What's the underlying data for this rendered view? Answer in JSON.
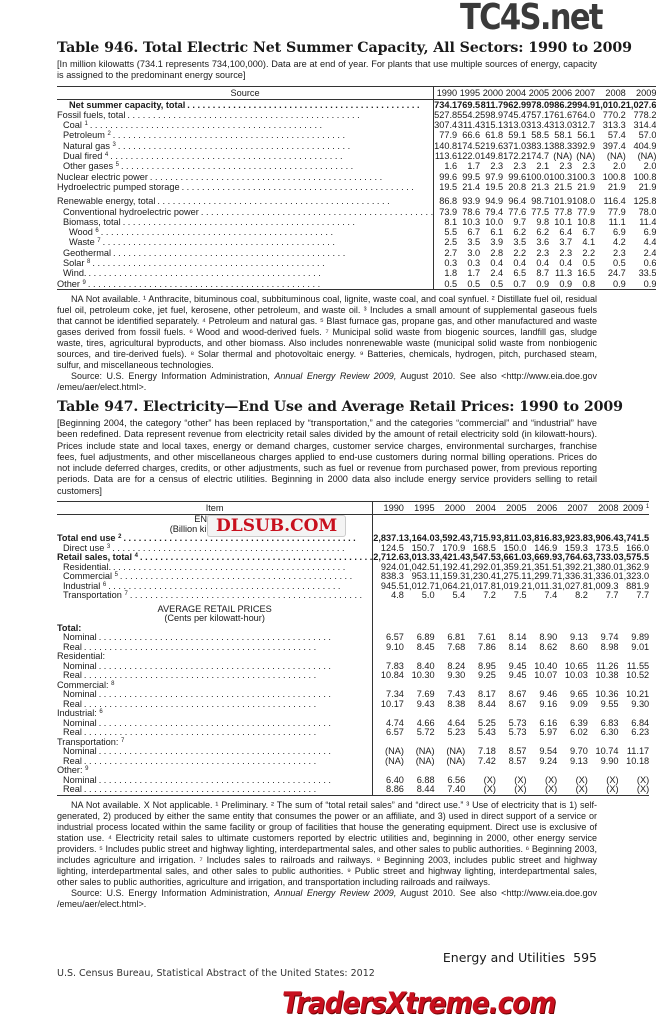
{
  "watermarks": {
    "top": "TC4S.net",
    "middle": "DLSUB.COM",
    "bottom": "TradersXtreme.com"
  },
  "colors": {
    "watermark_red": "#c8101e",
    "watermark_gray": "#3a3a3a"
  },
  "t946": {
    "title": "Table 946. Total Electric Net Summer Capacity, All Sectors: 1990 to 2009",
    "intro": "[In million kilowatts (734.1 represents 734,100,000). Data are at end of year. For plants that use multiple sources of energy, capacity is assigned to the predominant energy source]",
    "headers": [
      "Source",
      "1990",
      "1995",
      "2000",
      "2004",
      "2005",
      "2006",
      "2007",
      "2008",
      "2009"
    ],
    "rows": [
      {
        "label": "Net summer capacity, total",
        "sup": "",
        "indent": 2,
        "bold": true,
        "values": [
          "734.1",
          "769.5",
          "811.7",
          "962.9",
          "978.0",
          "986.2",
          "994.9",
          "1,010.2",
          "1,027.6"
        ]
      },
      {
        "label": "Fossil fuels, total",
        "sup": "",
        "indent": 0,
        "values": [
          "527.8",
          "554.2",
          "598.9",
          "745.4",
          "757.1",
          "761.6",
          "764.0",
          "770.2",
          "778.2"
        ]
      },
      {
        "label": "Coal",
        "sup": "1",
        "indent": 1,
        "values": [
          "307.4",
          "311.4",
          "315.1",
          "313.0",
          "313.4",
          "313.0",
          "312.7",
          "313.3",
          "314.4"
        ]
      },
      {
        "label": "Petroleum",
        "sup": "2",
        "indent": 1,
        "values": [
          "77.9",
          "66.6",
          "61.8",
          "59.1",
          "58.5",
          "58.1",
          "56.1",
          "57.4",
          "57.0"
        ]
      },
      {
        "label": "Natural gas",
        "sup": "3",
        "indent": 1,
        "values": [
          "140.8",
          "174.5",
          "219.6",
          "371.0",
          "383.1",
          "388.3",
          "392.9",
          "397.4",
          "404.9"
        ]
      },
      {
        "label": "Dual fired",
        "sup": "4",
        "indent": 1,
        "values": [
          "113.6",
          "122.0",
          "149.8",
          "172.2",
          "174.7",
          "(NA)",
          "(NA)",
          "(NA)",
          "(NA)"
        ]
      },
      {
        "label": "Other gases",
        "sup": "5",
        "indent": 1,
        "values": [
          "1.6",
          "1.7",
          "2.3",
          "2.3",
          "2.1",
          "2.3",
          "2.3",
          "2.0",
          "2.0"
        ]
      },
      {
        "label": "Nuclear electric power",
        "sup": "",
        "indent": 0,
        "values": [
          "99.6",
          "99.5",
          "97.9",
          "99.6",
          "100.0",
          "100.3",
          "100.3",
          "100.8",
          "100.8"
        ]
      },
      {
        "label": "Hydroelectric pumped storage",
        "sup": "",
        "indent": 0,
        "values": [
          "19.5",
          "21.4",
          "19.5",
          "20.8",
          "21.3",
          "21.5",
          "21.9",
          "21.9",
          "21.9"
        ]
      },
      {
        "label": "Renewable energy, total",
        "sup": "",
        "indent": 0,
        "gap": true,
        "values": [
          "86.8",
          "93.9",
          "94.9",
          "96.4",
          "98.7",
          "101.9",
          "108.0",
          "116.4",
          "125.8"
        ]
      },
      {
        "label": "Conventional hydroelectric power",
        "sup": "",
        "indent": 1,
        "values": [
          "73.9",
          "78.6",
          "79.4",
          "77.6",
          "77.5",
          "77.8",
          "77.9",
          "77.9",
          "78.0"
        ]
      },
      {
        "label": "Biomass, total",
        "sup": "",
        "indent": 1,
        "values": [
          "8.1",
          "10.3",
          "10.0",
          "9.7",
          "9.8",
          "10.1",
          "10.8",
          "11.1",
          "11.4"
        ]
      },
      {
        "label": "Wood",
        "sup": "6",
        "indent": 2,
        "values": [
          "5.5",
          "6.7",
          "6.1",
          "6.2",
          "6.2",
          "6.4",
          "6.7",
          "6.9",
          "6.9"
        ]
      },
      {
        "label": "Waste",
        "sup": "7",
        "indent": 2,
        "values": [
          "2.5",
          "3.5",
          "3.9",
          "3.5",
          "3.6",
          "3.7",
          "4.1",
          "4.2",
          "4.4"
        ]
      },
      {
        "label": "Geothermal",
        "sup": "",
        "indent": 1,
        "values": [
          "2.7",
          "3.0",
          "2.8",
          "2.2",
          "2.3",
          "2.3",
          "2.2",
          "2.3",
          "2.4"
        ]
      },
      {
        "label": "Solar",
        "sup": "8",
        "indent": 1,
        "values": [
          "0.3",
          "0.3",
          "0.4",
          "0.4",
          "0.4",
          "0.4",
          "0.5",
          "0.5",
          "0.6"
        ]
      },
      {
        "label": "Wind.",
        "sup": "",
        "indent": 1,
        "values": [
          "1.8",
          "1.7",
          "2.4",
          "6.5",
          "8.7",
          "11.3",
          "16.5",
          "24.7",
          "33.5"
        ]
      },
      {
        "label": "Other",
        "sup": "9",
        "indent": 0,
        "values": [
          "0.5",
          "0.5",
          "0.5",
          "0.7",
          "0.9",
          "0.9",
          "0.8",
          "0.9",
          "0.9"
        ]
      }
    ],
    "notes": "NA Not available. ¹ Anthracite, bituminous coal, subbituminous coal, lignite, waste coal, and coal synfuel. ² Distillate fuel oil, residual fuel oil, petroleum coke, jet fuel, kerosene, other petroleum, and waste oil. ³ Includes a small amount of supplemental gaseous fuels that cannot be identified separately. ⁴ Petroleum and natural gas. ⁵ Blast furnace gas, propane gas, and other manufactured and waste gases derived from fossil fuels. ⁶ Wood and wood-derived fuels. ⁷ Municipal solid waste from biogenic sources, landfill gas, sludge waste, tires, agricultural byproducts, and other biomass. Also includes nonrenewable waste (municipal solid waste from nonbiogenic sources, and tire-derived fuels). ⁸ Solar thermal and photovoltaic energy. ⁹ Batteries, chemicals, hydrogen, pitch, purchased steam, sulfur, and miscellaneous technologies.",
    "source_pre": "Source: U.S. Energy Information Administration, ",
    "source_italic": "Annual Energy Review 2009,",
    "source_post": " August 2010. See also <http://www.eia.doe.gov /emeu/aer/elect.html>."
  },
  "t947": {
    "title": "Table 947. Electricity—End Use and Average Retail Prices: 1990 to 2009",
    "intro": "[Beginning 2004, the category “other” has been replaced by “transportation,” and the categories “commercial” and “industrial” have been redefined. Data represent revenue from electricity retail sales divided by the amount of retail electricity sold (in kilowatt-hours). Prices include state and local taxes, energy or demand charges, customer service charges, environmental surcharges, franchise fees, fuel adjustments, and other miscellaneous charges applied to end-use customers during normal billing operations. Prices do not include deferred charges, credits, or other adjustments, such as fuel or revenue from purchased power, from previous reporting periods. Data are for a census of electric utilities. Beginning in 2000 data also include energy service providers selling to retail customers]",
    "headers": [
      "Item",
      "1990",
      "1995",
      "2000",
      "2004",
      "2005",
      "2006",
      "2007",
      "2008",
      "2009"
    ],
    "header_sup_last": "1",
    "rows": [
      {
        "label": "END USE",
        "center": true,
        "noleader": true,
        "values": []
      },
      {
        "label": "(Billion kilowatt-hours)",
        "center": true,
        "noleader": true,
        "values": []
      },
      {
        "label": "Total end use",
        "sup": "2",
        "bold": true,
        "indent": 0,
        "values": [
          "2,837.1",
          "3,164.0",
          "3,592.4",
          "3,715.9",
          "3,811.0",
          "3,816.8",
          "3,923.8",
          "3,906.4",
          "3,741.5"
        ]
      },
      {
        "label": "Direct use",
        "sup": "3",
        "indent": 1,
        "values": [
          "124.5",
          "150.7",
          "170.9",
          "168.5",
          "150.0",
          "146.9",
          "159.3",
          "173.5",
          "166.0"
        ]
      },
      {
        "label": "Retail sales, total",
        "sup": "4",
        "bold": true,
        "indent": 0,
        "values": [
          "2,712.6",
          "3,013.3",
          "3,421.4",
          "3,547.5",
          "3,661.0",
          "3,669.9",
          "3,764.6",
          "3,733.0",
          "3,575.5"
        ]
      },
      {
        "label": "Residential.",
        "indent": 1,
        "values": [
          "924.0",
          "1,042.5",
          "1,192.4",
          "1,292.0",
          "1,359.2",
          "1,351.5",
          "1,392.2",
          "1,380.0",
          "1,362.9"
        ]
      },
      {
        "label": "Commercial",
        "sup": "5",
        "indent": 1,
        "values": [
          "838.3",
          "953.1",
          "1,159.3",
          "1,230.4",
          "1,275.1",
          "1,299.7",
          "1,336.3",
          "1,336.0",
          "1,323.0"
        ]
      },
      {
        "label": "Industrial",
        "sup": "6",
        "indent": 1,
        "values": [
          "945.5",
          "1,012.7",
          "1,064.2",
          "1,017.8",
          "1,019.2",
          "1,011.3",
          "1,027.8",
          "1,009.3",
          "881.9"
        ]
      },
      {
        "label": "Transportation",
        "sup": "7",
        "indent": 1,
        "values": [
          "4.8",
          "5.0",
          "5.4",
          "7.2",
          "7.5",
          "7.4",
          "8.2",
          "7.7",
          "7.7"
        ]
      },
      {
        "label": "AVERAGE RETAIL PRICES",
        "center": true,
        "noleader": true,
        "gap": true,
        "values": []
      },
      {
        "label": "(Cents per kilowatt-hour)",
        "center": true,
        "noleader": true,
        "values": []
      },
      {
        "label": "Total:",
        "bold": true,
        "noleader": true,
        "indent": 0,
        "values": []
      },
      {
        "label": "Nominal",
        "indent": 1,
        "values": [
          "6.57",
          "6.89",
          "6.81",
          "7.61",
          "8.14",
          "8.90",
          "9.13",
          "9.74",
          "9.89"
        ]
      },
      {
        "label": "Real",
        "indent": 1,
        "values": [
          "9.10",
          "8.45",
          "7.68",
          "7.86",
          "8.14",
          "8.62",
          "8.60",
          "8.98",
          "9.01"
        ]
      },
      {
        "label": "Residential:",
        "noleader": true,
        "indent": 0,
        "values": []
      },
      {
        "label": "Nominal",
        "indent": 1,
        "values": [
          "7.83",
          "8.40",
          "8.24",
          "8.95",
          "9.45",
          "10.40",
          "10.65",
          "11.26",
          "11.55"
        ]
      },
      {
        "label": "Real",
        "indent": 1,
        "values": [
          "10.84",
          "10.30",
          "9.30",
          "9.25",
          "9.45",
          "10.07",
          "10.03",
          "10.38",
          "10.52"
        ]
      },
      {
        "label": "Commercial:",
        "sup": "8",
        "noleader": true,
        "indent": 0,
        "values": []
      },
      {
        "label": "Nominal",
        "indent": 1,
        "values": [
          "7.34",
          "7.69",
          "7.43",
          "8.17",
          "8.67",
          "9.46",
          "9.65",
          "10.36",
          "10.21"
        ]
      },
      {
        "label": "Real",
        "indent": 1,
        "values": [
          "10.17",
          "9.43",
          "8.38",
          "8.44",
          "8.67",
          "9.16",
          "9.09",
          "9.55",
          "9.30"
        ]
      },
      {
        "label": "Industrial:",
        "sup": "6",
        "noleader": true,
        "indent": 0,
        "values": []
      },
      {
        "label": "Nominal",
        "indent": 1,
        "values": [
          "4.74",
          "4.66",
          "4.64",
          "5.25",
          "5.73",
          "6.16",
          "6.39",
          "6.83",
          "6.84"
        ]
      },
      {
        "label": "Real",
        "indent": 1,
        "values": [
          "6.57",
          "5.72",
          "5.23",
          "5.43",
          "5.73",
          "5.97",
          "6.02",
          "6.30",
          "6.23"
        ]
      },
      {
        "label": "Transportation:",
        "sup": "7",
        "noleader": true,
        "indent": 0,
        "values": []
      },
      {
        "label": "Nominal",
        "indent": 1,
        "values": [
          "(NA)",
          "(NA)",
          "(NA)",
          "7.18",
          "8.57",
          "9.54",
          "9.70",
          "10.74",
          "11.17"
        ]
      },
      {
        "label": "Real",
        "indent": 1,
        "values": [
          "(NA)",
          "(NA)",
          "(NA)",
          "7.42",
          "8.57",
          "9.24",
          "9.13",
          "9.90",
          "10.18"
        ]
      },
      {
        "label": "Other:",
        "sup": "9",
        "noleader": true,
        "indent": 0,
        "values": []
      },
      {
        "label": "Nominal",
        "indent": 1,
        "values": [
          "6.40",
          "6.88",
          "6.56",
          "(X)",
          "(X)",
          "(X)",
          "(X)",
          "(X)",
          "(X)"
        ]
      },
      {
        "label": "Real",
        "indent": 1,
        "values": [
          "8.86",
          "8.44",
          "7.40",
          "(X)",
          "(X)",
          "(X)",
          "(X)",
          "(X)",
          "(X)"
        ]
      }
    ],
    "notes": "NA Not available. X Not applicable. ¹ Preliminary. ² The sum of “total retail sales” and “direct use.” ³ Use of electricity that is 1) self-generated, 2) produced by either the same entity that consumes the power or an affiliate, and 3) used in direct support of a service or industrial process located within the same facility or group of facilities that house the generating equipment. Direct use is exclusive of station use. ⁴ Electricity retail sales to ultimate customers reported by electric utilities and, beginning in 2000, other energy service providers. ⁵ Includes public street and highway lighting, interdepartmental sales, and other sales to public authorities. ⁶ Beginning 2003, includes agriculture and irrigation. ⁷ Includes sales to railroads and railways. ⁸ Beginning 2003, includes public street and highway lighting, interdepartmental sales, and other sales to public authorities. ⁹ Public street and highway lighting, interdepartmental sales, other sales to public authorities, agriculture and irrigation, and transportation including railroads and railways.",
    "source_pre": "Source: U.S. Energy Information Administration, ",
    "source_italic": "Annual Energy Review 2009,",
    "source_post": " August 2010. See also <http://www.eia.doe.gov /emeu/aer/elect.html>."
  },
  "footer": {
    "section": "Energy and Utilities",
    "page": "595",
    "publication": "U.S. Census Bureau, Statistical Abstract of the United States: 2012"
  }
}
